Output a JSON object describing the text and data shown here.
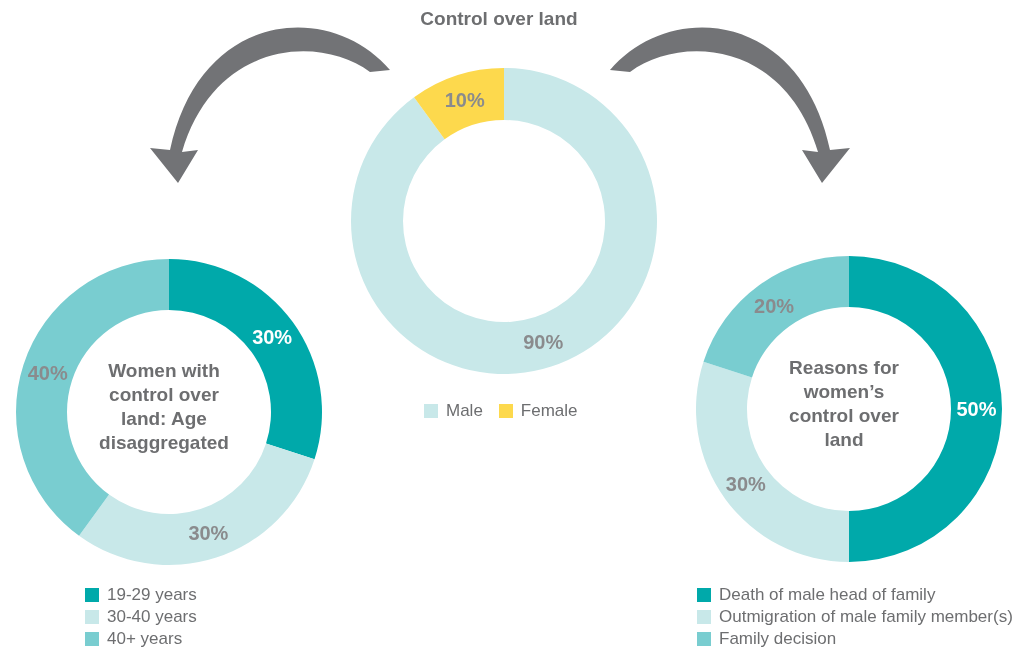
{
  "chart_data": [
    {
      "type": "donut",
      "title": "Control over land",
      "categories": [
        "Male",
        "Female"
      ],
      "values": [
        90,
        10
      ],
      "value_labels": [
        "90%",
        "10%"
      ],
      "colors": [
        "#c8e8e9",
        "#fdd94d"
      ],
      "legend": "bottom"
    },
    {
      "type": "donut",
      "title": "Women with control over land: Age disaggregated",
      "categories": [
        "19-29 years",
        "30-40 years",
        "40+ years"
      ],
      "values": [
        30,
        30,
        40
      ],
      "value_labels": [
        "30%",
        "30%",
        "40%"
      ],
      "colors": [
        "#00a9aa",
        "#c8e8e9",
        "#79cdd0"
      ],
      "legend": "bottom"
    },
    {
      "type": "donut",
      "title": "Reasons for women’s control over land",
      "categories": [
        "Death of male head of family",
        "Outmigration of male family member(s)",
        "Family decision"
      ],
      "values": [
        50,
        30,
        20
      ],
      "value_labels": [
        "50%",
        "30%",
        "20%"
      ],
      "colors": [
        "#00a9aa",
        "#c8e8e9",
        "#79cdd0"
      ],
      "legend": "bottom"
    }
  ]
}
